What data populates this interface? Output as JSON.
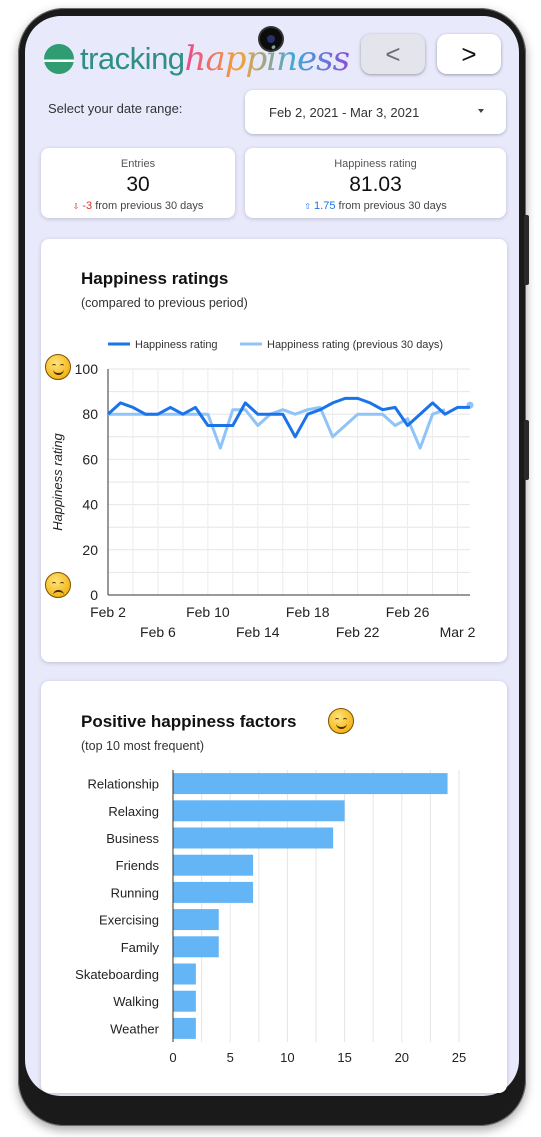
{
  "app": {
    "logo_part1": "tracking",
    "logo_part2": "happiness",
    "prev_label": "<",
    "next_label": ">"
  },
  "date_range": {
    "label": "Select your date range:",
    "value": "Feb 2, 2021 - Mar 3, 2021"
  },
  "kpis": {
    "entries": {
      "label": "Entries",
      "value": "30",
      "arrow": "⇩",
      "delta": "-3",
      "suffix": "from previous 30 days"
    },
    "happiness": {
      "label": "Happiness rating",
      "value": "81.03",
      "arrow": "⇧",
      "delta": "1.75",
      "suffix": "from previous 30 days"
    }
  },
  "ratings_card": {
    "title": "Happiness ratings",
    "subtitle": "(compared to previous period)"
  },
  "factors_card": {
    "title": "Positive happiness factors",
    "subtitle": "(top 10 most frequent)"
  },
  "chart_data": [
    {
      "type": "line",
      "ylabel": "Happiness rating",
      "ylim": [
        0,
        100
      ],
      "yticks": [
        0,
        20,
        40,
        60,
        80,
        100
      ],
      "x_ticks_row1": [
        "Feb 2",
        "Feb 10",
        "Feb 18",
        "Feb 26"
      ],
      "x_ticks_row2": [
        "Feb 6",
        "Feb 14",
        "Feb 22",
        "Mar 2"
      ],
      "legend_position": "top",
      "grid": true,
      "x": [
        "Feb 2",
        "Feb 3",
        "Feb 4",
        "Feb 5",
        "Feb 6",
        "Feb 7",
        "Feb 8",
        "Feb 9",
        "Feb 10",
        "Feb 11",
        "Feb 12",
        "Feb 13",
        "Feb 14",
        "Feb 15",
        "Feb 16",
        "Feb 17",
        "Feb 18",
        "Feb 19",
        "Feb 20",
        "Feb 21",
        "Feb 22",
        "Feb 23",
        "Feb 24",
        "Feb 25",
        "Feb 26",
        "Feb 27",
        "Feb 28",
        "Mar 1",
        "Mar 2",
        "Mar 3"
      ],
      "series": [
        {
          "name": "Happiness rating",
          "color": "#1a73e8",
          "values": [
            80,
            85,
            83,
            80,
            80,
            83,
            80,
            83,
            75,
            75,
            75,
            85,
            80,
            80,
            80,
            70,
            80,
            82,
            85,
            87,
            87,
            85,
            82,
            83,
            75,
            80,
            85,
            80,
            83,
            83
          ]
        },
        {
          "name": "Happiness rating (previous 30 days)",
          "color": "#90c4f9",
          "values": [
            80,
            80,
            80,
            80,
            80,
            80,
            80,
            80,
            80,
            65,
            82,
            82,
            75,
            80,
            82,
            80,
            82,
            83,
            70,
            75,
            80,
            80,
            80,
            75,
            78,
            65,
            80,
            82,
            null,
            84
          ]
        }
      ]
    },
    {
      "type": "bar",
      "orientation": "horizontal",
      "color": "#64b5f6",
      "categories": [
        "Relationship",
        "Relaxing",
        "Business",
        "Friends",
        "Running",
        "Exercising",
        "Family",
        "Skateboarding",
        "Walking",
        "Weather"
      ],
      "values": [
        24,
        15,
        14,
        7,
        7,
        4,
        4,
        2,
        2,
        2
      ],
      "xlim": [
        0,
        25
      ],
      "xticks": [
        0,
        5,
        10,
        15,
        20,
        25
      ],
      "grid": true
    }
  ]
}
